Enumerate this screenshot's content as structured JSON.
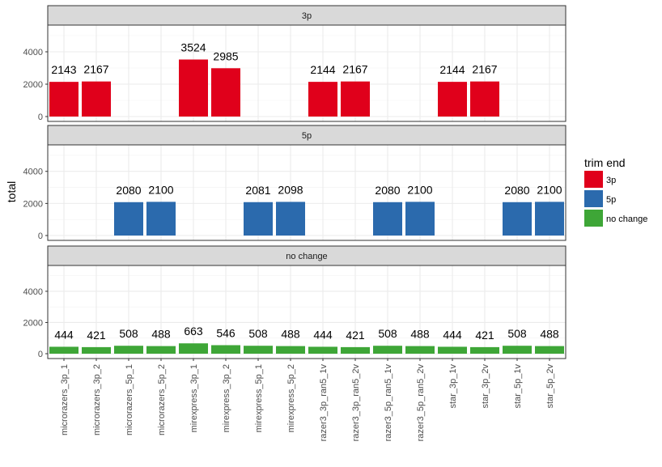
{
  "chart_data": {
    "type": "bar",
    "ylabel": "total",
    "xlabel": "",
    "ylim": [
      0,
      5500
    ],
    "yticks": [
      0,
      2000,
      4000
    ],
    "grid": true,
    "legend_placement": "right",
    "legend_title": "trim end",
    "categories": [
      "microrazers_3p_1",
      "microrazers_3p_2",
      "microrazers_5p_1",
      "microrazers_5p_2",
      "mirexpress_3p_1",
      "mirexpress_3p_2",
      "mirexpress_5p_1",
      "mirexpress_5p_2",
      "razer3_3p_ran5_1v",
      "razer3_3p_ran5_2v",
      "razer3_5p_ran5_1v",
      "razer3_5p_ran5_2v",
      "star_3p_1v",
      "star_3p_2v",
      "star_5p_1v",
      "star_5p_2v"
    ],
    "series": [
      {
        "name": "3p",
        "color": "#e0001b",
        "values": [
          2143,
          2167,
          null,
          null,
          3524,
          2985,
          null,
          null,
          2144,
          2167,
          null,
          null,
          2144,
          2167,
          null,
          null
        ]
      },
      {
        "name": "5p",
        "color": "#2b6aad",
        "values": [
          null,
          null,
          2080,
          2100,
          null,
          null,
          2081,
          2098,
          null,
          null,
          2080,
          2100,
          null,
          null,
          2080,
          2100
        ]
      },
      {
        "name": "no change",
        "color": "#3ea637",
        "values": [
          444,
          421,
          508,
          488,
          663,
          546,
          508,
          488,
          444,
          421,
          508,
          488,
          444,
          421,
          508,
          488
        ]
      }
    ]
  }
}
